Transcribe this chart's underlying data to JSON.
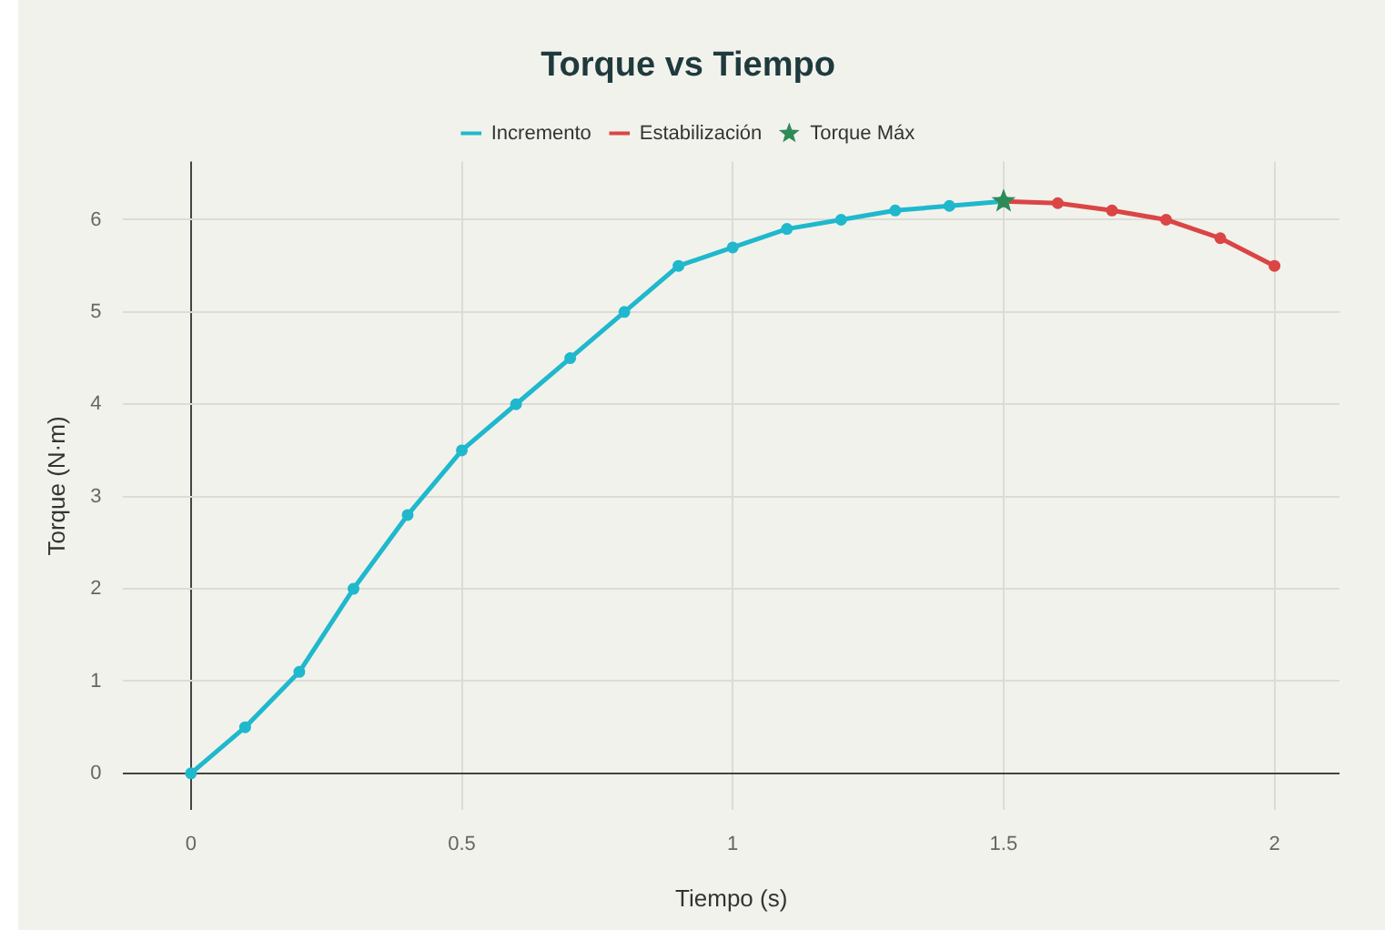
{
  "chart_data": {
    "type": "line",
    "title": "Torque vs Tiempo",
    "xlabel": "Tiempo (s)",
    "ylabel": "Torque (N·m)",
    "xlim": [
      -0.125,
      2.12
    ],
    "xticks": [
      0,
      0.5,
      1,
      1.5,
      2
    ],
    "ylim": [
      -0.4,
      6.63
    ],
    "yticks": [
      0,
      1,
      2,
      3,
      4,
      5,
      6
    ],
    "grid": true,
    "legend": "top",
    "marker": "circle",
    "line_style": "solid",
    "series": [
      {
        "name": "Incremento",
        "color": "#1fb8cd",
        "x": [
          0,
          0.1,
          0.2,
          0.3,
          0.4,
          0.5,
          0.6,
          0.7,
          0.8,
          0.9,
          1.0,
          1.1,
          1.2,
          1.3,
          1.4,
          1.5
        ],
        "values": [
          0,
          0.5,
          1.1,
          2,
          2.8,
          3.5,
          4,
          4.5,
          5,
          5.5,
          5.7,
          5.9,
          6.0,
          6.1,
          6.15,
          6.2
        ]
      },
      {
        "name": "Estabilización",
        "color": "#db4545",
        "x": [
          1.5,
          1.6,
          1.7,
          1.8,
          1.9,
          2.0
        ],
        "values": [
          6.2,
          6.18,
          6.1,
          6.0,
          5.8,
          5.5
        ]
      },
      {
        "name": "Torque Máx",
        "type": "scatter",
        "marker": "star",
        "color": "#2e8b57",
        "x": [
          1.5
        ],
        "values": [
          6.2
        ]
      }
    ]
  }
}
